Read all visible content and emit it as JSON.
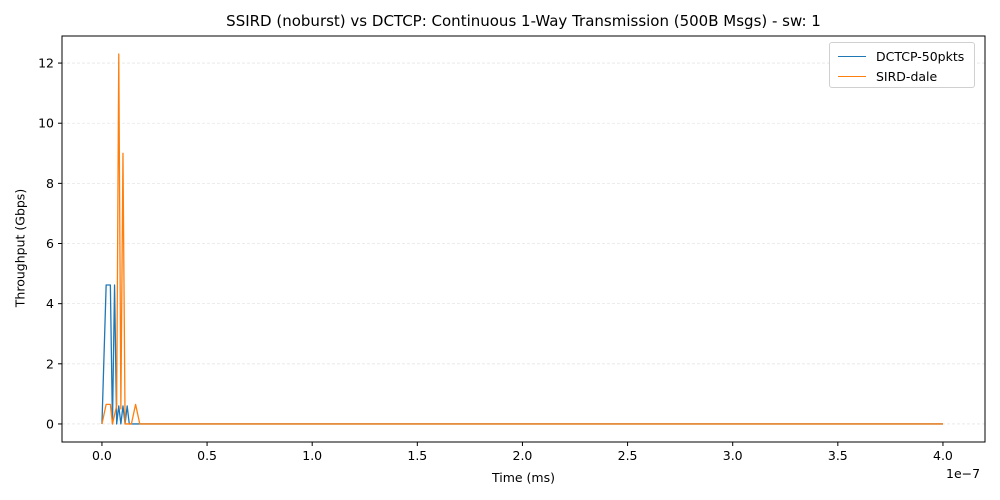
{
  "chart_data": {
    "type": "line",
    "title": "SSIRD (noburst) vs DCTCP: Continuous 1-Way Transmission (500B Msgs) - sw: 1",
    "xlabel": "Time (ms)",
    "ylabel": "Throughput (Gbps)",
    "x_offset_text": "1e−7",
    "xlim": [
      -0.19,
      4.2
    ],
    "ylim": [
      -0.6,
      12.9
    ],
    "x_ticks": [
      0.0,
      0.5,
      1.0,
      1.5,
      2.0,
      2.5,
      3.0,
      3.5,
      4.0
    ],
    "x_tick_labels": [
      "0.0",
      "0.5",
      "1.0",
      "1.5",
      "2.0",
      "2.5",
      "3.0",
      "3.5",
      "4.0"
    ],
    "y_ticks": [
      0,
      2,
      4,
      6,
      8,
      10,
      12
    ],
    "y_tick_labels": [
      "0",
      "2",
      "4",
      "6",
      "8",
      "10",
      "12"
    ],
    "grid": "horizontal, light dashed",
    "legend_position": "top-right",
    "series": [
      {
        "name": "DCTCP-50pkts",
        "color": "#1f77b4",
        "points": [
          [
            0.0,
            0.0
          ],
          [
            0.02,
            4.62
          ],
          [
            0.04,
            4.62
          ],
          [
            0.05,
            0.0
          ],
          [
            0.06,
            4.62
          ],
          [
            0.07,
            0.0
          ],
          [
            0.08,
            0.6
          ],
          [
            0.09,
            0.0
          ],
          [
            0.1,
            0.6
          ],
          [
            0.11,
            0.0
          ],
          [
            0.12,
            0.6
          ],
          [
            0.13,
            0.0
          ],
          [
            4.0,
            0.0
          ]
        ]
      },
      {
        "name": "SIRD-dale",
        "color": "#ff7f0e",
        "points": [
          [
            0.0,
            0.0
          ],
          [
            0.02,
            0.65
          ],
          [
            0.04,
            0.65
          ],
          [
            0.05,
            0.0
          ],
          [
            0.07,
            0.6
          ],
          [
            0.08,
            12.3
          ],
          [
            0.09,
            0.5
          ],
          [
            0.1,
            9.0
          ],
          [
            0.11,
            0.0
          ],
          [
            0.14,
            0.0
          ],
          [
            0.16,
            0.65
          ],
          [
            0.18,
            0.0
          ],
          [
            4.0,
            0.0
          ]
        ]
      }
    ]
  }
}
